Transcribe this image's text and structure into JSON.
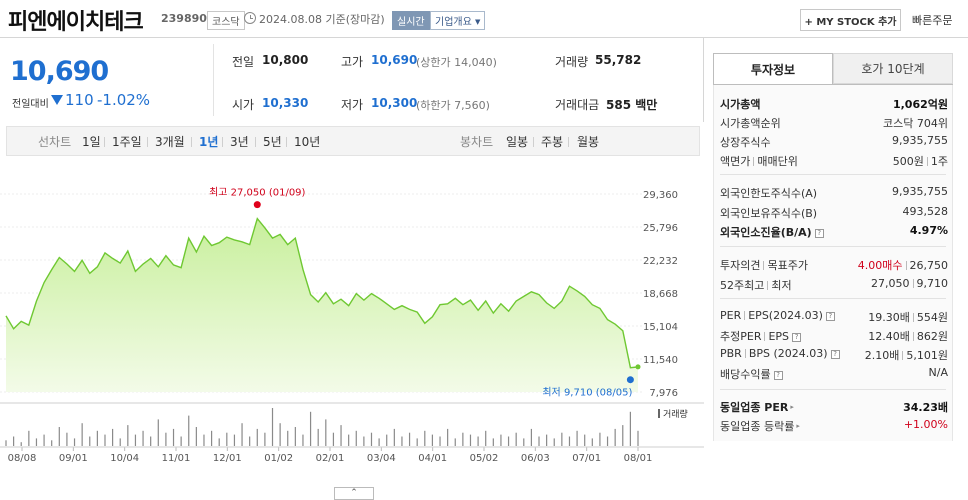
{
  "header": {
    "company_name": "피엔에이치테크",
    "company_code": "239890",
    "market": "코스닥",
    "date_text": "2024.08.08 기준(장마감)",
    "realtime": "실시간",
    "company_info": "기업개요",
    "mystock": "+ MY STOCK 추가",
    "quick_order": "빠른주문"
  },
  "price": {
    "current": "10,690",
    "change_label": "전일대비",
    "change_value": "110",
    "change_rate": "-1.02%",
    "prev_close_label": "전일",
    "prev_close": "10,800",
    "high_label": "고가",
    "high": "10,690",
    "upper_limit": "(상한가 14,040)",
    "volume_label": "거래량",
    "volume": "55,782",
    "open_label": "시가",
    "open": "10,330",
    "low_label": "저가",
    "low": "10,300",
    "lower_limit": "(하한가 7,560)",
    "amount_label": "거래대금",
    "amount": "585 백만"
  },
  "period_tabs": {
    "line_label": "선차트",
    "line": [
      "1일",
      "1주일",
      "3개월",
      "1년",
      "3년",
      "5년",
      "10년"
    ],
    "candle_label": "봉차트",
    "candle": [
      "일봉",
      "주봉",
      "월봉"
    ]
  },
  "chart_data": {
    "type": "area",
    "x_ticks": [
      "08/08",
      "09/01",
      "10/04",
      "11/01",
      "12/01",
      "01/02",
      "02/01",
      "03/04",
      "04/01",
      "05/02",
      "06/03",
      "07/01",
      "08/01"
    ],
    "y_ticks": [
      "29,360",
      "25,796",
      "22,232",
      "18,668",
      "15,104",
      "11,540",
      "7,976"
    ],
    "ylim": [
      7976,
      29360
    ],
    "values": [
      16200,
      14800,
      15600,
      15200,
      17800,
      19800,
      21200,
      22500,
      21800,
      21000,
      22200,
      20800,
      21500,
      23000,
      22400,
      21900,
      23200,
      21000,
      21800,
      22400,
      21500,
      22700,
      21700,
      21400,
      24600,
      23100,
      24800,
      23800,
      24100,
      24700,
      24400,
      24200,
      23900,
      26700,
      25700,
      24600,
      25000,
      23900,
      24600,
      21200,
      18500,
      17700,
      18700,
      17500,
      18000,
      17300,
      18600,
      17900,
      18600,
      18100,
      17500,
      16900,
      17300,
      16900,
      16600,
      15400,
      16100,
      17400,
      17500,
      18100,
      17400,
      17900,
      16800,
      17800,
      16500,
      17500,
      16700,
      17800,
      18300,
      18800,
      18500,
      17600,
      17000,
      17800,
      19400,
      18900,
      18300,
      17400,
      17000,
      15800,
      15300,
      14600,
      10600,
      10690
    ],
    "high_label": "최고 27,050 (01/09)",
    "low_label": "최저 9,710 (08/05)",
    "volume_legend": "거래량",
    "volume_values": [
      3,
      5,
      2,
      8,
      4,
      6,
      3,
      10,
      7,
      4,
      12,
      5,
      8,
      6,
      9,
      4,
      11,
      6,
      8,
      5,
      14,
      7,
      9,
      5,
      16,
      10,
      6,
      8,
      4,
      7,
      6,
      12,
      5,
      9,
      7,
      20,
      12,
      8,
      10,
      6,
      18,
      9,
      14,
      7,
      11,
      6,
      8,
      5,
      7,
      4,
      6,
      9,
      5,
      7,
      4,
      8,
      6,
      5,
      9,
      4,
      7,
      6,
      5,
      8,
      4,
      6,
      5,
      7,
      4,
      9,
      5,
      6,
      4,
      7,
      5,
      8,
      6,
      4,
      7,
      5,
      9,
      11,
      18,
      8
    ]
  },
  "invest_info": {
    "tab_invest": "투자정보",
    "tab_orderbook": "호가 10단계",
    "market_cap_label": "시가총액",
    "market_cap": "1,062억원",
    "cap_rank_label": "시가총액순위",
    "cap_rank": "코스닥 704위",
    "shares_label": "상장주식수",
    "shares": "9,935,755",
    "par_label": "액면가",
    "unit_label": "매매단위",
    "par": "500원",
    "unit": "1주",
    "foreign_limit_label": "외국인한도주식수(A)",
    "foreign_limit": "9,935,755",
    "foreign_hold_label": "외국인보유주식수(B)",
    "foreign_hold": "493,528",
    "foreign_rate_label": "외국인소진율(B/A)",
    "foreign_rate": "4.97%",
    "opinion_label": "투자의견",
    "target_label": "목표주가",
    "opinion": "4.00매수",
    "target": "26,750",
    "w52_label": "52주최고",
    "w52_low_label": "최저",
    "w52_high": "27,050",
    "w52_low": "9,710",
    "per_label": "PER",
    "eps_label": "EPS(2024.03)",
    "per": "19.30배",
    "eps": "554원",
    "est_per_label": "추정PER",
    "est_eps_label": "EPS",
    "est_per": "12.40배",
    "est_eps": "862원",
    "pbr_label": "PBR",
    "bps_label": "BPS (2024.03)",
    "pbr": "2.10배",
    "bps": "5,101원",
    "div_label": "배당수익률",
    "div": "N/A",
    "sector_per_label": "동일업종 PER",
    "sector_per": "34.23배",
    "sector_rate_label": "동일업종 등락률",
    "sector_rate": "+1.00%"
  },
  "icons": {
    "question": "?",
    "arrow": "▸",
    "collapse": "⌃"
  }
}
